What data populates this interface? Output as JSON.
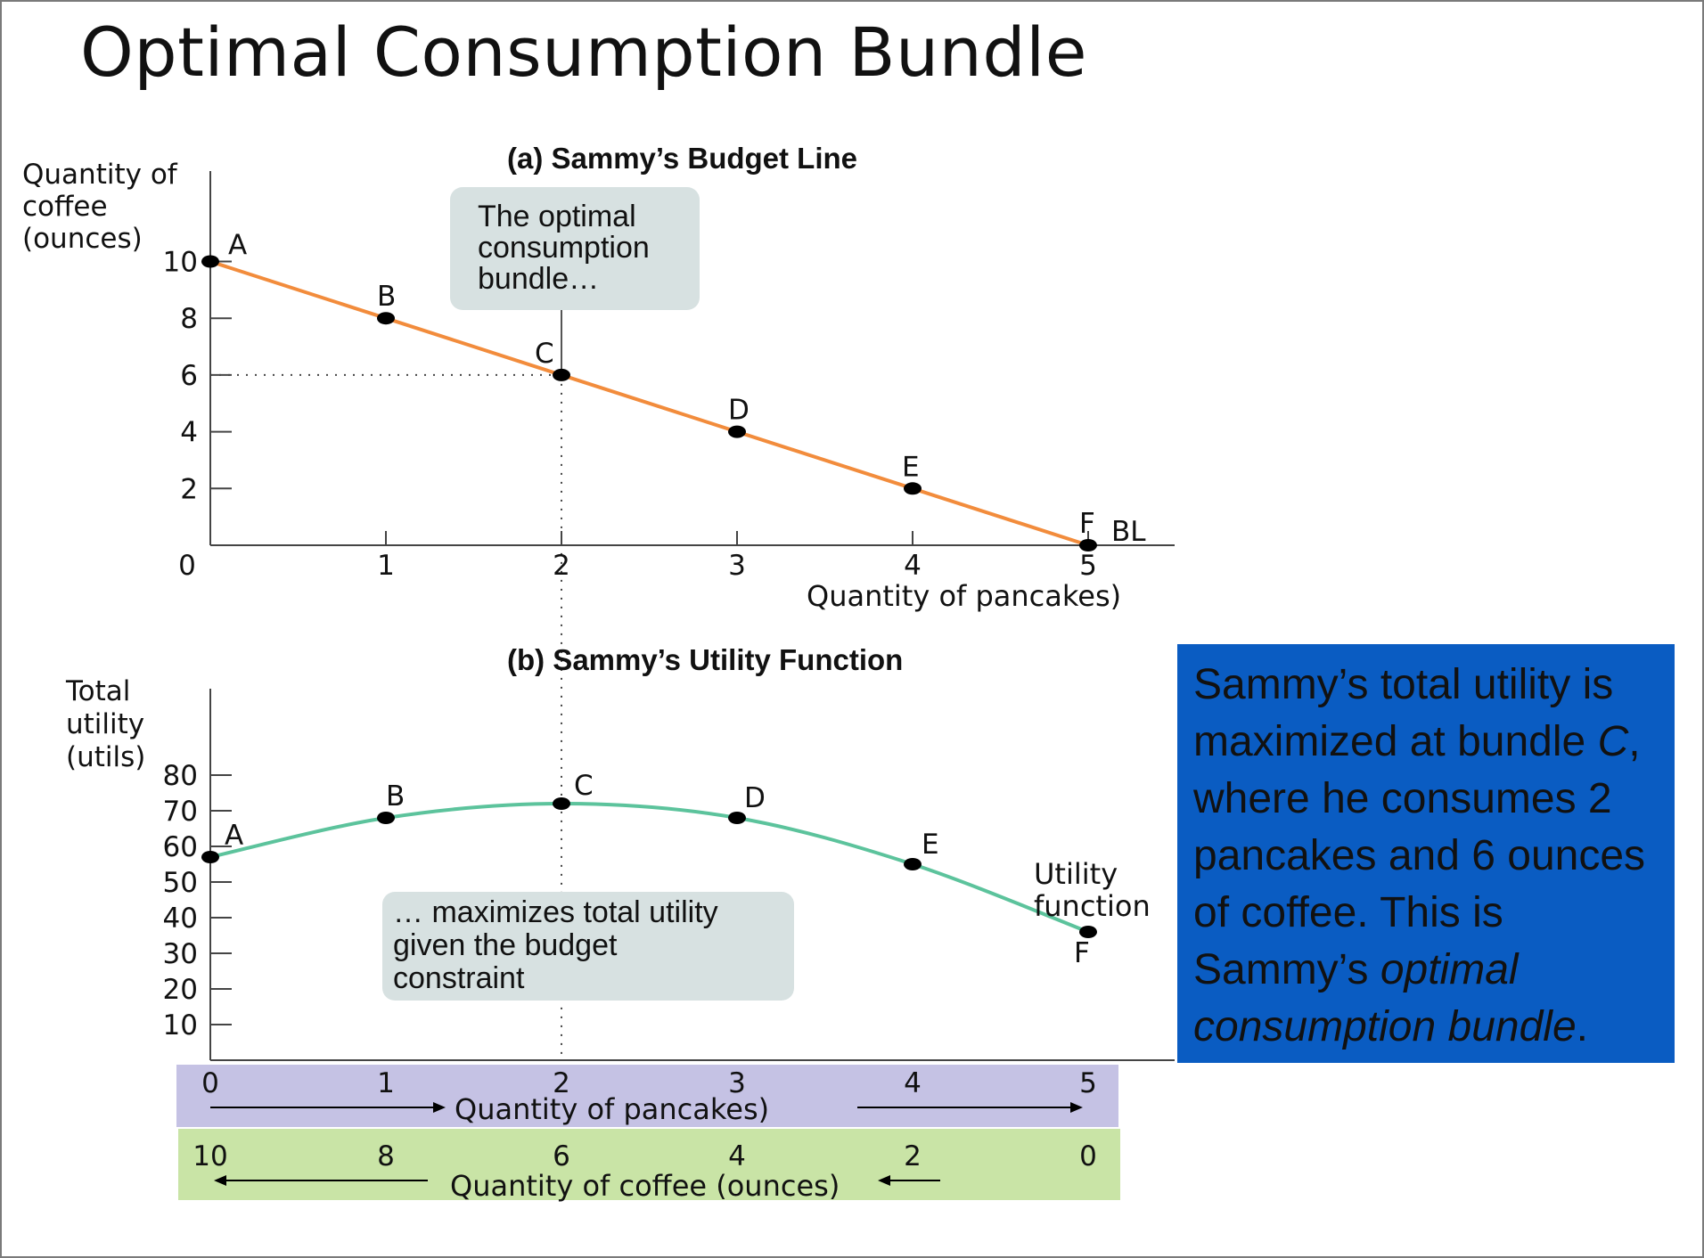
{
  "slide_title": "Optimal Consumption Bundle",
  "summary": {
    "part1": "Sammy’s total utility is maximized at bundle ",
    "part2": "C",
    "part3": ", where he consumes 2 pancakes and 6 ounces of coffee. This is Sammy’s ",
    "part4": "optimal consumption bundle",
    "part5": ".",
    "background": "#0a5cc2"
  },
  "chart_data": [
    {
      "type": "line",
      "title": "(a)  Sammy’s Budget Line",
      "ylabel_lines": [
        "Quantity of",
        "coffee",
        "(ounces)"
      ],
      "xlabel": "Quantity of pancakes)",
      "xlim": [
        0,
        5.5
      ],
      "ylim": [
        0,
        11
      ],
      "x_ticks": [
        0,
        1,
        2,
        3,
        4,
        5
      ],
      "y_ticks": [
        2,
        4,
        6,
        8,
        10
      ],
      "origin_label": "0",
      "line_color": "#f28c3c",
      "series_label": "BL",
      "points": [
        {
          "label": "A",
          "x": 0,
          "y": 10
        },
        {
          "label": "B",
          "x": 1,
          "y": 8
        },
        {
          "label": "C",
          "x": 2,
          "y": 6
        },
        {
          "label": "D",
          "x": 3,
          "y": 4
        },
        {
          "label": "E",
          "x": 4,
          "y": 2
        },
        {
          "label": "F",
          "x": 5,
          "y": 0
        }
      ],
      "callout": {
        "lines": [
          "The optimal",
          "consumption",
          "bundle…"
        ],
        "background": "#d7e1e1"
      },
      "optimal_point": "C"
    },
    {
      "type": "line",
      "title": "(b)  Sammy’s Utility Function",
      "ylabel_lines": [
        "Total",
        "utility",
        "(utils)"
      ],
      "xlim": [
        0,
        5.5
      ],
      "ylim": [
        0,
        100
      ],
      "y_ticks": [
        10,
        20,
        30,
        40,
        50,
        60,
        70,
        80
      ],
      "line_color": "#5cc39c",
      "series_label_lines": [
        "Utility",
        "function"
      ],
      "points": [
        {
          "label": "A",
          "x": 0,
          "y": 57
        },
        {
          "label": "B",
          "x": 1,
          "y": 68
        },
        {
          "label": "C",
          "x": 2,
          "y": 72
        },
        {
          "label": "D",
          "x": 3,
          "y": 68
        },
        {
          "label": "E",
          "x": 4,
          "y": 55
        },
        {
          "label": "F",
          "x": 5,
          "y": 36
        }
      ],
      "callout": {
        "lines": [
          "… maximizes total utility",
          "given the budget",
          "constraint"
        ],
        "background": "#d7e1e1"
      },
      "pancake_axis": {
        "ticks": [
          "0",
          "1",
          "2",
          "3",
          "4",
          "5"
        ],
        "label": "Quantity of pancakes)",
        "background": "#c5c2e4"
      },
      "coffee_axis": {
        "ticks": [
          "10",
          "8",
          "6",
          "4",
          "2",
          "0"
        ],
        "label": "Quantity of coffee  (ounces)",
        "background": "#c9e4a6"
      }
    }
  ]
}
